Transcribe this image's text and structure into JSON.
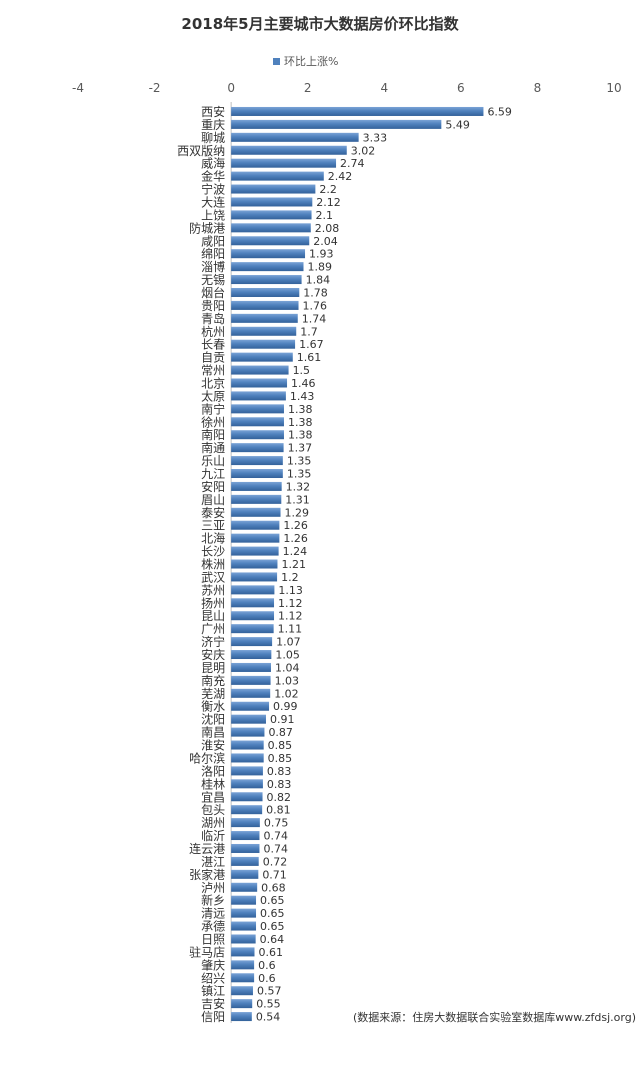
{
  "chart_data": {
    "type": "bar",
    "orientation": "horizontal",
    "title": "2018年5月主要城市大数据房价环比指数",
    "legend_position": "top",
    "xlim": [
      -4,
      10
    ],
    "x_ticks": [
      "-4",
      "-2",
      "0",
      "2",
      "4",
      "6",
      "8",
      "10"
    ],
    "bar_color": "#4f81bd",
    "categories": [
      "西安",
      "重庆",
      "聊城",
      "西双版纳",
      "威海",
      "金华",
      "宁波",
      "大连",
      "上饶",
      "防城港",
      "咸阳",
      "绵阳",
      "淄博",
      "无锡",
      "烟台",
      "贵阳",
      "青岛",
      "杭州",
      "长春",
      "自贡",
      "常州",
      "北京",
      "太原",
      "南宁",
      "徐州",
      "南阳",
      "南通",
      "乐山",
      "九江",
      "安阳",
      "眉山",
      "泰安",
      "三亚",
      "北海",
      "长沙",
      "株洲",
      "武汉",
      "苏州",
      "扬州",
      "昆山",
      "广州",
      "济宁",
      "安庆",
      "昆明",
      "南充",
      "芜湖",
      "衡水",
      "沈阳",
      "南昌",
      "淮安",
      "哈尔滨",
      "洛阳",
      "桂林",
      "宜昌",
      "包头",
      "湖州",
      "临沂",
      "连云港",
      "湛江",
      "张家港",
      "泸州",
      "新乡",
      "清远",
      "承德",
      "日照",
      "驻马店",
      "肇庆",
      "绍兴",
      "镇江",
      "吉安",
      "信阳"
    ],
    "series": [
      {
        "name": "环比上涨%",
        "values": [
          6.59,
          5.49,
          3.33,
          3.02,
          2.74,
          2.42,
          2.2,
          2.12,
          2.1,
          2.08,
          2.04,
          1.93,
          1.89,
          1.84,
          1.78,
          1.76,
          1.74,
          1.7,
          1.67,
          1.61,
          1.5,
          1.46,
          1.43,
          1.38,
          1.38,
          1.38,
          1.37,
          1.35,
          1.35,
          1.32,
          1.31,
          1.29,
          1.26,
          1.26,
          1.24,
          1.21,
          1.2,
          1.13,
          1.12,
          1.12,
          1.11,
          1.07,
          1.05,
          1.04,
          1.03,
          1.02,
          0.99,
          0.91,
          0.87,
          0.85,
          0.85,
          0.83,
          0.83,
          0.82,
          0.81,
          0.75,
          0.74,
          0.74,
          0.72,
          0.71,
          0.68,
          0.65,
          0.65,
          0.65,
          0.64,
          0.61,
          0.6,
          0.6,
          0.57,
          0.55,
          0.54
        ]
      }
    ],
    "source_note": "(数据来源：住房大数据联合实验室数据库www.zfdsj.org)"
  }
}
